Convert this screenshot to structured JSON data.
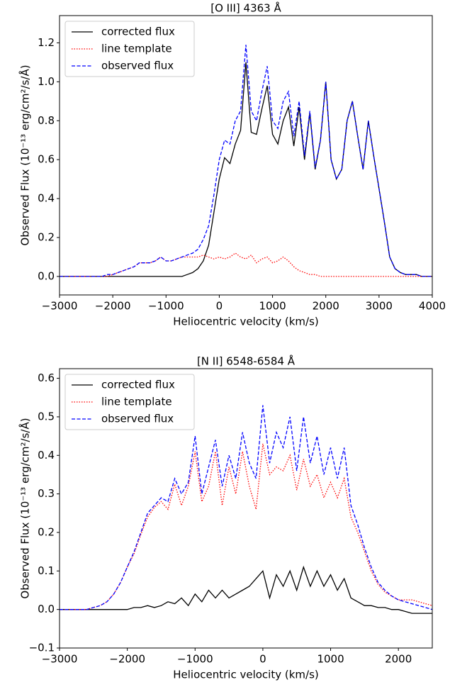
{
  "chart_data": [
    {
      "type": "line",
      "title": "[O III] 4363 Å",
      "x_label": "Heliocentric velocity (km/s)",
      "y_label": "Observed Flux (10⁻¹³ erg/cm²/s/Å)",
      "legend": "upper left",
      "xlim": [
        -3000,
        4000
      ],
      "ylim": [
        -0.095,
        1.34
      ],
      "xticks": [
        {
          "value": -3000,
          "label": "−3000"
        },
        {
          "value": -2000,
          "label": "−2000"
        },
        {
          "value": -1000,
          "label": "−1000"
        },
        0,
        1000,
        2000,
        3000,
        4000
      ],
      "yticks": [
        {
          "value": 0,
          "label": "0.0"
        },
        0.2,
        0.4,
        0.6,
        0.8,
        {
          "value": 1,
          "label": "1.0"
        },
        1.2
      ],
      "x": [
        -3000,
        -2900,
        -2800,
        -2700,
        -2600,
        -2500,
        -2400,
        -2300,
        -2200,
        -2100,
        -2000,
        -1900,
        -1800,
        -1700,
        -1600,
        -1500,
        -1400,
        -1300,
        -1200,
        -1100,
        -1000,
        -900,
        -800,
        -700,
        -600,
        -500,
        -400,
        -300,
        -200,
        -100,
        0,
        100,
        200,
        300,
        400,
        500,
        600,
        700,
        800,
        900,
        1000,
        1100,
        1200,
        1300,
        1400,
        1500,
        1600,
        1700,
        1800,
        1900,
        2000,
        2100,
        2200,
        2300,
        2400,
        2500,
        2600,
        2700,
        2800,
        2900,
        3000,
        3100,
        3200,
        3300,
        3400,
        3500,
        3600,
        3700,
        3800,
        3900,
        4000
      ],
      "series": [
        {
          "name": "corrected flux",
          "color": "#000000",
          "linestyle": "solid",
          "values": [
            0,
            0,
            0,
            0,
            0,
            0,
            0,
            0,
            0,
            0,
            0,
            0,
            0,
            0,
            0,
            0,
            0,
            0,
            0,
            0,
            0,
            0,
            0,
            0,
            0.01,
            0.02,
            0.04,
            0.08,
            0.16,
            0.33,
            0.5,
            0.61,
            0.58,
            0.68,
            0.75,
            1.1,
            0.74,
            0.73,
            0.86,
            0.98,
            0.73,
            0.68,
            0.8,
            0.87,
            0.67,
            0.87,
            0.6,
            0.84,
            0.55,
            0.7,
            1.0,
            0.6,
            0.5,
            0.55,
            0.8,
            0.9,
            0.72,
            0.55,
            0.8,
            0.62,
            0.45,
            0.28,
            0.1,
            0.04,
            0.02,
            0.01,
            0.01,
            0.01,
            0,
            0,
            0
          ]
        },
        {
          "name": "line template",
          "color": "#ff0000",
          "linestyle": "dotted",
          "values": [
            0,
            0,
            0,
            0,
            0,
            0,
            0,
            0,
            0,
            0,
            0.01,
            0.02,
            0.03,
            0.04,
            0.05,
            0.07,
            0.07,
            0.07,
            0.08,
            0.1,
            0.08,
            0.08,
            0.09,
            0.1,
            0.1,
            0.1,
            0.1,
            0.11,
            0.1,
            0.09,
            0.1,
            0.09,
            0.1,
            0.12,
            0.1,
            0.09,
            0.11,
            0.07,
            0.09,
            0.1,
            0.07,
            0.08,
            0.1,
            0.08,
            0.05,
            0.03,
            0.02,
            0.01,
            0.01,
            0,
            0,
            0,
            0,
            0,
            0,
            0,
            0,
            0,
            0,
            0,
            0,
            0,
            0,
            0,
            0,
            0,
            0,
            0,
            0,
            0,
            0
          ]
        },
        {
          "name": "observed flux",
          "color": "#0000ff",
          "linestyle": "dashed",
          "values": [
            0,
            0,
            0,
            0,
            0,
            0,
            0,
            0,
            0,
            0.01,
            0.01,
            0.02,
            0.03,
            0.04,
            0.05,
            0.07,
            0.07,
            0.07,
            0.08,
            0.1,
            0.08,
            0.08,
            0.09,
            0.1,
            0.11,
            0.12,
            0.14,
            0.19,
            0.26,
            0.42,
            0.6,
            0.7,
            0.68,
            0.8,
            0.85,
            1.19,
            0.85,
            0.8,
            0.95,
            1.08,
            0.8,
            0.76,
            0.9,
            0.95,
            0.72,
            0.9,
            0.62,
            0.85,
            0.56,
            0.7,
            1.0,
            0.6,
            0.5,
            0.55,
            0.8,
            0.9,
            0.72,
            0.55,
            0.8,
            0.62,
            0.45,
            0.28,
            0.1,
            0.04,
            0.02,
            0.01,
            0.01,
            0.01,
            0,
            0,
            0
          ]
        }
      ]
    },
    {
      "type": "line",
      "title": "[N II] 6548-6584 Å",
      "x_label": "Heliocentric velocity (km/s)",
      "y_label": "Observed Flux (10⁻¹³ erg/cm²/s/Å)",
      "legend": "upper left",
      "xlim": [
        -3000,
        2500
      ],
      "ylim": [
        -0.1,
        0.625
      ],
      "xticks": [
        {
          "value": -3000,
          "label": "−3000"
        },
        {
          "value": -2000,
          "label": "−2000"
        },
        {
          "value": -1000,
          "label": "−1000"
        },
        0,
        1000,
        2000
      ],
      "yticks": [
        {
          "value": -0.1,
          "label": "−0.1"
        },
        {
          "value": 0,
          "label": "0.0"
        },
        0.1,
        0.2,
        0.3,
        0.4,
        0.5,
        0.6
      ],
      "x": [
        -3000,
        -2900,
        -2800,
        -2700,
        -2600,
        -2500,
        -2400,
        -2300,
        -2200,
        -2100,
        -2000,
        -1900,
        -1800,
        -1700,
        -1600,
        -1500,
        -1400,
        -1300,
        -1200,
        -1100,
        -1000,
        -900,
        -800,
        -700,
        -600,
        -500,
        -400,
        -300,
        -200,
        -100,
        0,
        100,
        200,
        300,
        400,
        500,
        600,
        700,
        800,
        900,
        1000,
        1100,
        1200,
        1300,
        1400,
        1500,
        1600,
        1700,
        1800,
        1900,
        2000,
        2100,
        2200,
        2300,
        2400,
        2500
      ],
      "series": [
        {
          "name": "corrected flux",
          "color": "#000000",
          "linestyle": "solid",
          "values": [
            0,
            0,
            0,
            0,
            0,
            0,
            0,
            0,
            0,
            0,
            0,
            0.005,
            0.005,
            0.01,
            0.005,
            0.01,
            0.02,
            0.015,
            0.03,
            0.01,
            0.04,
            0.02,
            0.05,
            0.03,
            0.05,
            0.03,
            0.04,
            0.05,
            0.06,
            0.08,
            0.1,
            0.03,
            0.09,
            0.06,
            0.1,
            0.05,
            0.11,
            0.06,
            0.1,
            0.06,
            0.09,
            0.05,
            0.08,
            0.03,
            0.02,
            0.01,
            0.01,
            0.005,
            0.005,
            0,
            0,
            -0.005,
            -0.01,
            -0.01,
            -0.01,
            -0.01
          ]
        },
        {
          "name": "line template",
          "color": "#ff0000",
          "linestyle": "dotted",
          "values": [
            0,
            0,
            0,
            0,
            0,
            0.005,
            0.01,
            0.02,
            0.04,
            0.07,
            0.11,
            0.145,
            0.195,
            0.24,
            0.265,
            0.28,
            0.26,
            0.325,
            0.27,
            0.32,
            0.41,
            0.28,
            0.32,
            0.41,
            0.27,
            0.37,
            0.3,
            0.41,
            0.32,
            0.26,
            0.43,
            0.35,
            0.37,
            0.36,
            0.4,
            0.31,
            0.39,
            0.32,
            0.35,
            0.29,
            0.33,
            0.29,
            0.34,
            0.24,
            0.2,
            0.15,
            0.1,
            0.065,
            0.045,
            0.035,
            0.025,
            0.025,
            0.025,
            0.02,
            0.015,
            0.01
          ]
        },
        {
          "name": "observed flux",
          "color": "#0000ff",
          "linestyle": "dashed",
          "values": [
            0,
            0,
            0,
            0,
            0,
            0.005,
            0.01,
            0.02,
            0.04,
            0.07,
            0.11,
            0.15,
            0.2,
            0.25,
            0.27,
            0.29,
            0.28,
            0.34,
            0.3,
            0.33,
            0.45,
            0.3,
            0.37,
            0.44,
            0.32,
            0.4,
            0.34,
            0.46,
            0.38,
            0.34,
            0.53,
            0.38,
            0.46,
            0.42,
            0.5,
            0.36,
            0.5,
            0.38,
            0.45,
            0.35,
            0.42,
            0.34,
            0.42,
            0.27,
            0.22,
            0.16,
            0.11,
            0.07,
            0.05,
            0.035,
            0.025,
            0.02,
            0.015,
            0.01,
            0.005,
            0
          ]
        }
      ]
    }
  ]
}
